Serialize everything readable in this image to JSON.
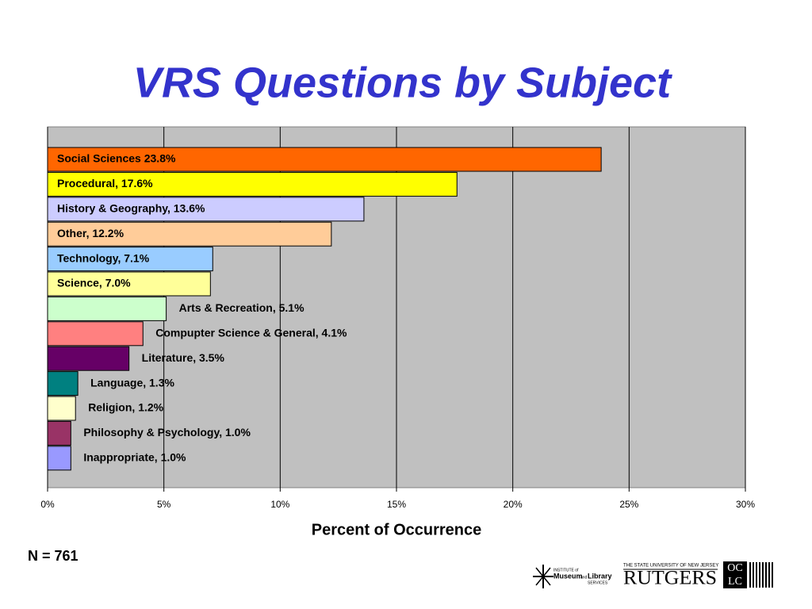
{
  "chart_data": {
    "type": "barh",
    "title": "VRS Questions by Subject",
    "values": [
      23.8,
      17.6,
      13.6,
      12.2,
      7.1,
      7.0,
      5.1,
      4.1,
      3.5,
      1.3,
      1.2,
      1.0,
      1.0
    ],
    "value_labels": [
      "Social Sciences 23.8%",
      "Procedural, 17.6%",
      "History & Geography, 13.6%",
      "Other, 12.2%",
      "Technology, 7.1%",
      "Science, 7.0%",
      "Arts & Recreation, 5.1%",
      "Compupter Science & General, 4.1%",
      "Literature, 3.5%",
      "Language, 1.3%",
      "Religion, 1.2%",
      "Philosophy & Psychology, 1.0%",
      "Inappropriate, 1.0%"
    ],
    "colors": [
      "#ff6600",
      "#ffff00",
      "#ccccff",
      "#ffcc99",
      "#99ccff",
      "#ffff99",
      "#ccffcc",
      "#ff8080",
      "#660066",
      "#008080",
      "#ffffcc",
      "#993366",
      "#9999ff"
    ],
    "xlim": [
      0,
      30
    ],
    "xticks": [
      {
        "value": 0,
        "label": "0%"
      },
      {
        "value": 5,
        "label": "5%"
      },
      {
        "value": 10,
        "label": "10%"
      },
      {
        "value": 15,
        "label": "15%"
      },
      {
        "value": 20,
        "label": "20%"
      },
      {
        "value": 25,
        "label": "25%"
      },
      {
        "value": 30,
        "label": "30%"
      }
    ],
    "xlabel": "Percent of Occurrence",
    "grid": true,
    "note": "N = 761"
  },
  "logos": {
    "imls": [
      "INSTITUTE of",
      "Museum",
      "and",
      "Library",
      "SERVICES"
    ],
    "rutgers": [
      "THE STATE UNIVERSITY OF NEW JERSEY",
      "RUTGERS"
    ],
    "oclc": [
      "OC",
      "LC"
    ]
  }
}
